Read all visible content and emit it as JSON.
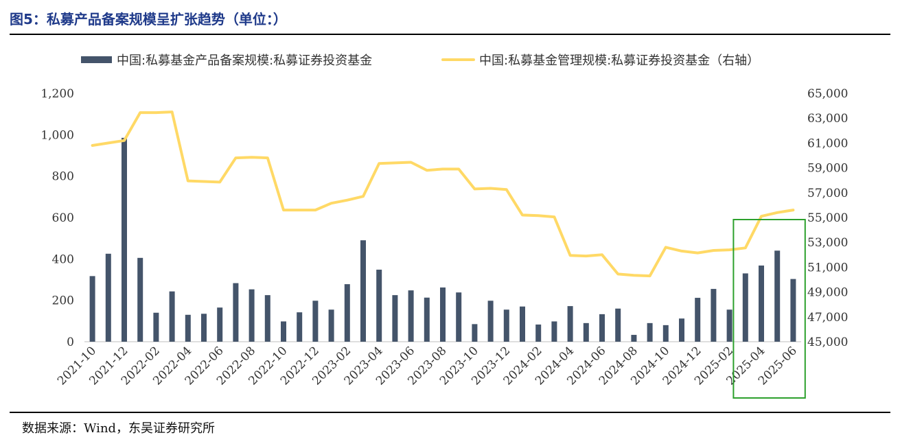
{
  "figure": {
    "title": "图5：私募产品备案规模呈扩张趋势（单位：）",
    "source": "数据来源：Wind，东吴证券研究所"
  },
  "colors": {
    "bar": "#44546a",
    "line": "#ffd966",
    "highlight": "#2ca02c"
  },
  "chart_data": {
    "type": "bar+line",
    "categories": [
      "2021-10",
      "2021-11",
      "2021-12",
      "2022-01",
      "2022-02",
      "2022-03",
      "2022-04",
      "2022-05",
      "2022-06",
      "2022-07",
      "2022-08",
      "2022-09",
      "2022-10",
      "2022-11",
      "2022-12",
      "2023-01",
      "2023-02",
      "2023-03",
      "2023-04",
      "2023-05",
      "2023-06",
      "2023-07",
      "2023-08",
      "2023-09",
      "2023-10",
      "2023-11",
      "2023-12",
      "2024-01",
      "2024-02",
      "2024-03",
      "2024-04",
      "2024-05",
      "2024-06",
      "2024-07",
      "2024-08",
      "2024-09",
      "2024-10",
      "2024-11",
      "2024-12",
      "2025-01",
      "2025-02",
      "2025-03",
      "2025-04",
      "2025-05",
      "2025-06"
    ],
    "x_tick_labels": [
      "2021-10",
      "2021-12",
      "2022-02",
      "2022-04",
      "2022-06",
      "2022-08",
      "2022-10",
      "2022-12",
      "2023-02",
      "2023-04",
      "2023-06",
      "2023-08",
      "2023-10",
      "2023-12",
      "2024-02",
      "2024-04",
      "2024-06",
      "2024-08",
      "2024-10",
      "2024-12",
      "2025-02",
      "2025-04",
      "2025-06"
    ],
    "series": [
      {
        "name": "中国:私募基金产品备案规模:私募证券投资基金",
        "type": "bar",
        "axis": "left",
        "values": [
          317,
          425,
          985,
          405,
          140,
          243,
          130,
          135,
          165,
          283,
          253,
          225,
          98,
          142,
          198,
          155,
          278,
          490,
          348,
          225,
          248,
          213,
          262,
          238,
          85,
          198,
          155,
          170,
          83,
          98,
          172,
          90,
          133,
          160,
          33,
          90,
          80,
          112,
          212,
          255,
          155,
          330,
          368,
          440,
          303
        ]
      },
      {
        "name": "中国:私募基金管理规模:私募证券投资基金（右轴）",
        "type": "line",
        "axis": "right",
        "values": [
          60800,
          61000,
          61200,
          63450,
          63450,
          63500,
          57950,
          57900,
          57850,
          59800,
          59850,
          59800,
          55600,
          55600,
          55600,
          56150,
          56400,
          56700,
          59350,
          59400,
          59450,
          58800,
          58900,
          58900,
          57300,
          57350,
          57250,
          55200,
          55150,
          55050,
          51950,
          51900,
          52000,
          50450,
          50350,
          50300,
          52600,
          52300,
          52150,
          52350,
          52400,
          52550,
          55100,
          55400,
          55600
        ]
      }
    ],
    "y_left": {
      "ylim": [
        0,
        1200
      ],
      "ticks": [
        0,
        200,
        400,
        600,
        800,
        1000,
        1200
      ],
      "tick_labels": [
        "0",
        "200",
        "400",
        "600",
        "800",
        "1,000",
        "1,200"
      ]
    },
    "y_right": {
      "ylim": [
        45000,
        65000
      ],
      "ticks": [
        45000,
        47000,
        49000,
        51000,
        53000,
        55000,
        57000,
        59000,
        61000,
        63000,
        65000
      ],
      "tick_labels": [
        "45,000",
        "47,000",
        "49,000",
        "51,000",
        "53,000",
        "55,000",
        "57,000",
        "59,000",
        "61,000",
        "63,000",
        "65,000"
      ]
    },
    "highlight": {
      "from": "2025-03",
      "to": "2025-06"
    },
    "legend_position": "top",
    "grid": false
  }
}
